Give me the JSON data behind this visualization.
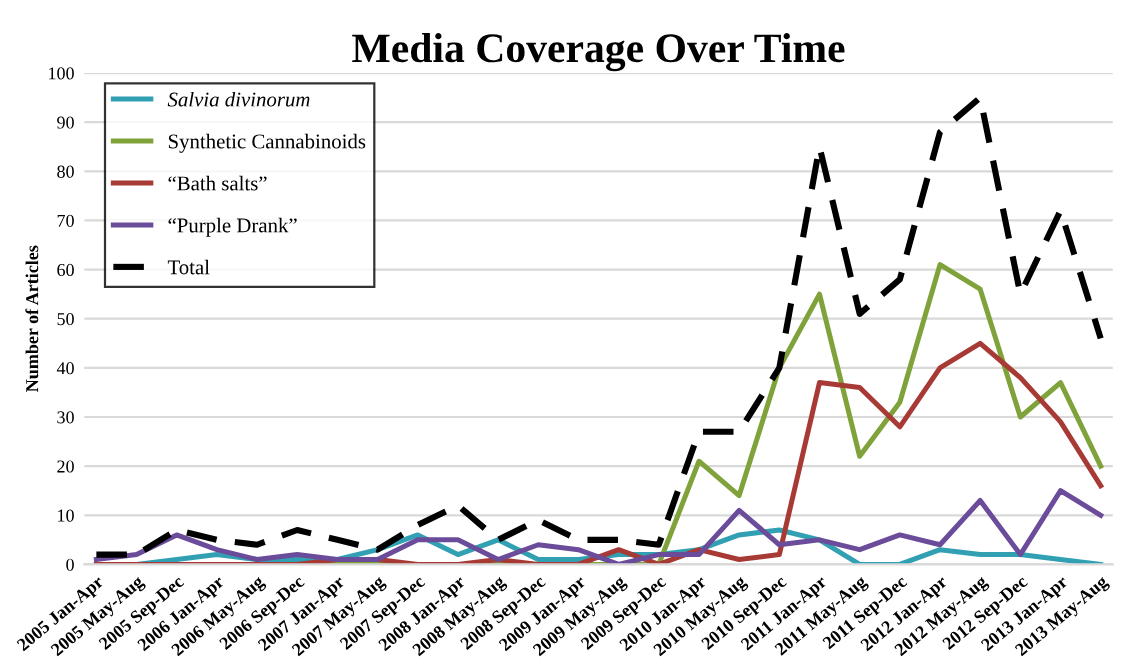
{
  "chart_data": {
    "type": "line",
    "title": "Media Coverage Over Time",
    "ylabel": "Number of Articles",
    "categories": [
      "2005 Jan-Apr",
      "2005 May-Aug",
      "2005 Sep-Dec",
      "2006 Jan-Apr",
      "2006 May-Aug",
      "2006 Sep-Dec",
      "2007 Jan-Apr",
      "2007 May-Aug",
      "2007 Sep-Dec",
      "2008 Jan-Apr",
      "2008 May-Aug",
      "2008 Sep-Dec",
      "2009 Jan-Apr",
      "2009 May-Aug",
      "2009 Sep-Dec",
      "2010 Jan-Apr",
      "2010 May-Aug",
      "2010 Sep-Dec",
      "2011 Jan-Apr",
      "2011 May-Aug",
      "2011 Sep-Dec",
      "2012 Jan-Apr",
      "2012 May-Aug",
      "2012 Sep-Dec",
      "2013 Jan-Apr",
      "2013 May-Aug"
    ],
    "series": [
      {
        "name": "Salvia divinorum",
        "color": "#31a0b2",
        "values": [
          0,
          0,
          1,
          2,
          1,
          1,
          1,
          3,
          6,
          2,
          5,
          1,
          1,
          2,
          2,
          3,
          6,
          7,
          5,
          0,
          0,
          3,
          2,
          2,
          1,
          0
        ]
      },
      {
        "name": "Synthetic Cannabinoids",
        "color": "#7fa23a",
        "values": [
          null,
          null,
          null,
          null,
          null,
          0,
          0,
          0,
          0,
          0,
          0,
          0,
          0,
          0,
          0,
          21,
          14,
          40,
          55,
          22,
          33,
          61,
          56,
          30,
          37,
          20
        ]
      },
      {
        "name": "“Bath salts”",
        "color": "#a83a36",
        "values": [
          0,
          0,
          0,
          0,
          0,
          0,
          1,
          1,
          0,
          0,
          1,
          0,
          0,
          3,
          0,
          3,
          1,
          2,
          37,
          36,
          28,
          40,
          45,
          38,
          29,
          16
        ]
      },
      {
        "name": "“Purple Drank”",
        "color": "#6b4c9a",
        "values": [
          1,
          2,
          6,
          3,
          1,
          2,
          1,
          1,
          5,
          5,
          1,
          4,
          3,
          0,
          2,
          2,
          11,
          4,
          5,
          3,
          6,
          4,
          13,
          2,
          15,
          10
        ]
      },
      {
        "name": "Total",
        "color": "#000000",
        "line_style": "dashed",
        "values": [
          2,
          2,
          7,
          5,
          4,
          7,
          5,
          3,
          8,
          12,
          5,
          9,
          5,
          5,
          4,
          27,
          27,
          40,
          85,
          51,
          58,
          88,
          95,
          55,
          72,
          46
        ]
      }
    ],
    "ylim": [
      0,
      100
    ],
    "yticks": [
      0,
      10,
      20,
      30,
      40,
      50,
      60,
      70,
      80,
      90,
      100
    ],
    "grid": "y",
    "legend": "top left",
    "line_style": "solid",
    "marker": "none"
  }
}
